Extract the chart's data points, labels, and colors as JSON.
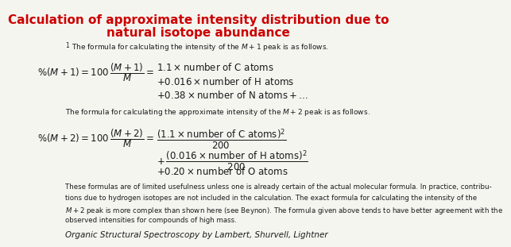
{
  "title_line1": "Calculation of approximate intensity distribution due to",
  "title_line2": "natural isotope abundance",
  "title_color": "#cc0000",
  "title_fontsize": 11,
  "body_color": "#1a1a1a",
  "background_color": "#f5f5f0",
  "footnote1_super": "1",
  "footnote1_text": "The formula for calculating the intensity of the $M + 1$ peak is as follows.",
  "footnote2_text": "The formula for calculating the approximate intensity of the $M + 2$ peak is as follows.",
  "para_line1": "These formulas are of limited usefulness unless one is already certain of the actual molecular formula. In practice, contribu-",
  "para_line2": "tions due to hydrogen isotopes are not included in the calculation. The exact formula for calculating the intensity of the",
  "para_line3": "$M + 2$ peak is more complex than shown here (see Beynon). The formula given above tends to have better agreement with the",
  "para_line4": "observed intensities for compounds of high mass.",
  "citation": "Organic Structural Spectroscopy by Lambert, Shurvell, Lightner",
  "small_fontsize": 6.5,
  "formula_fontsize": 8.5,
  "para_fontsize": 6.2,
  "cite_fontsize": 7.5
}
